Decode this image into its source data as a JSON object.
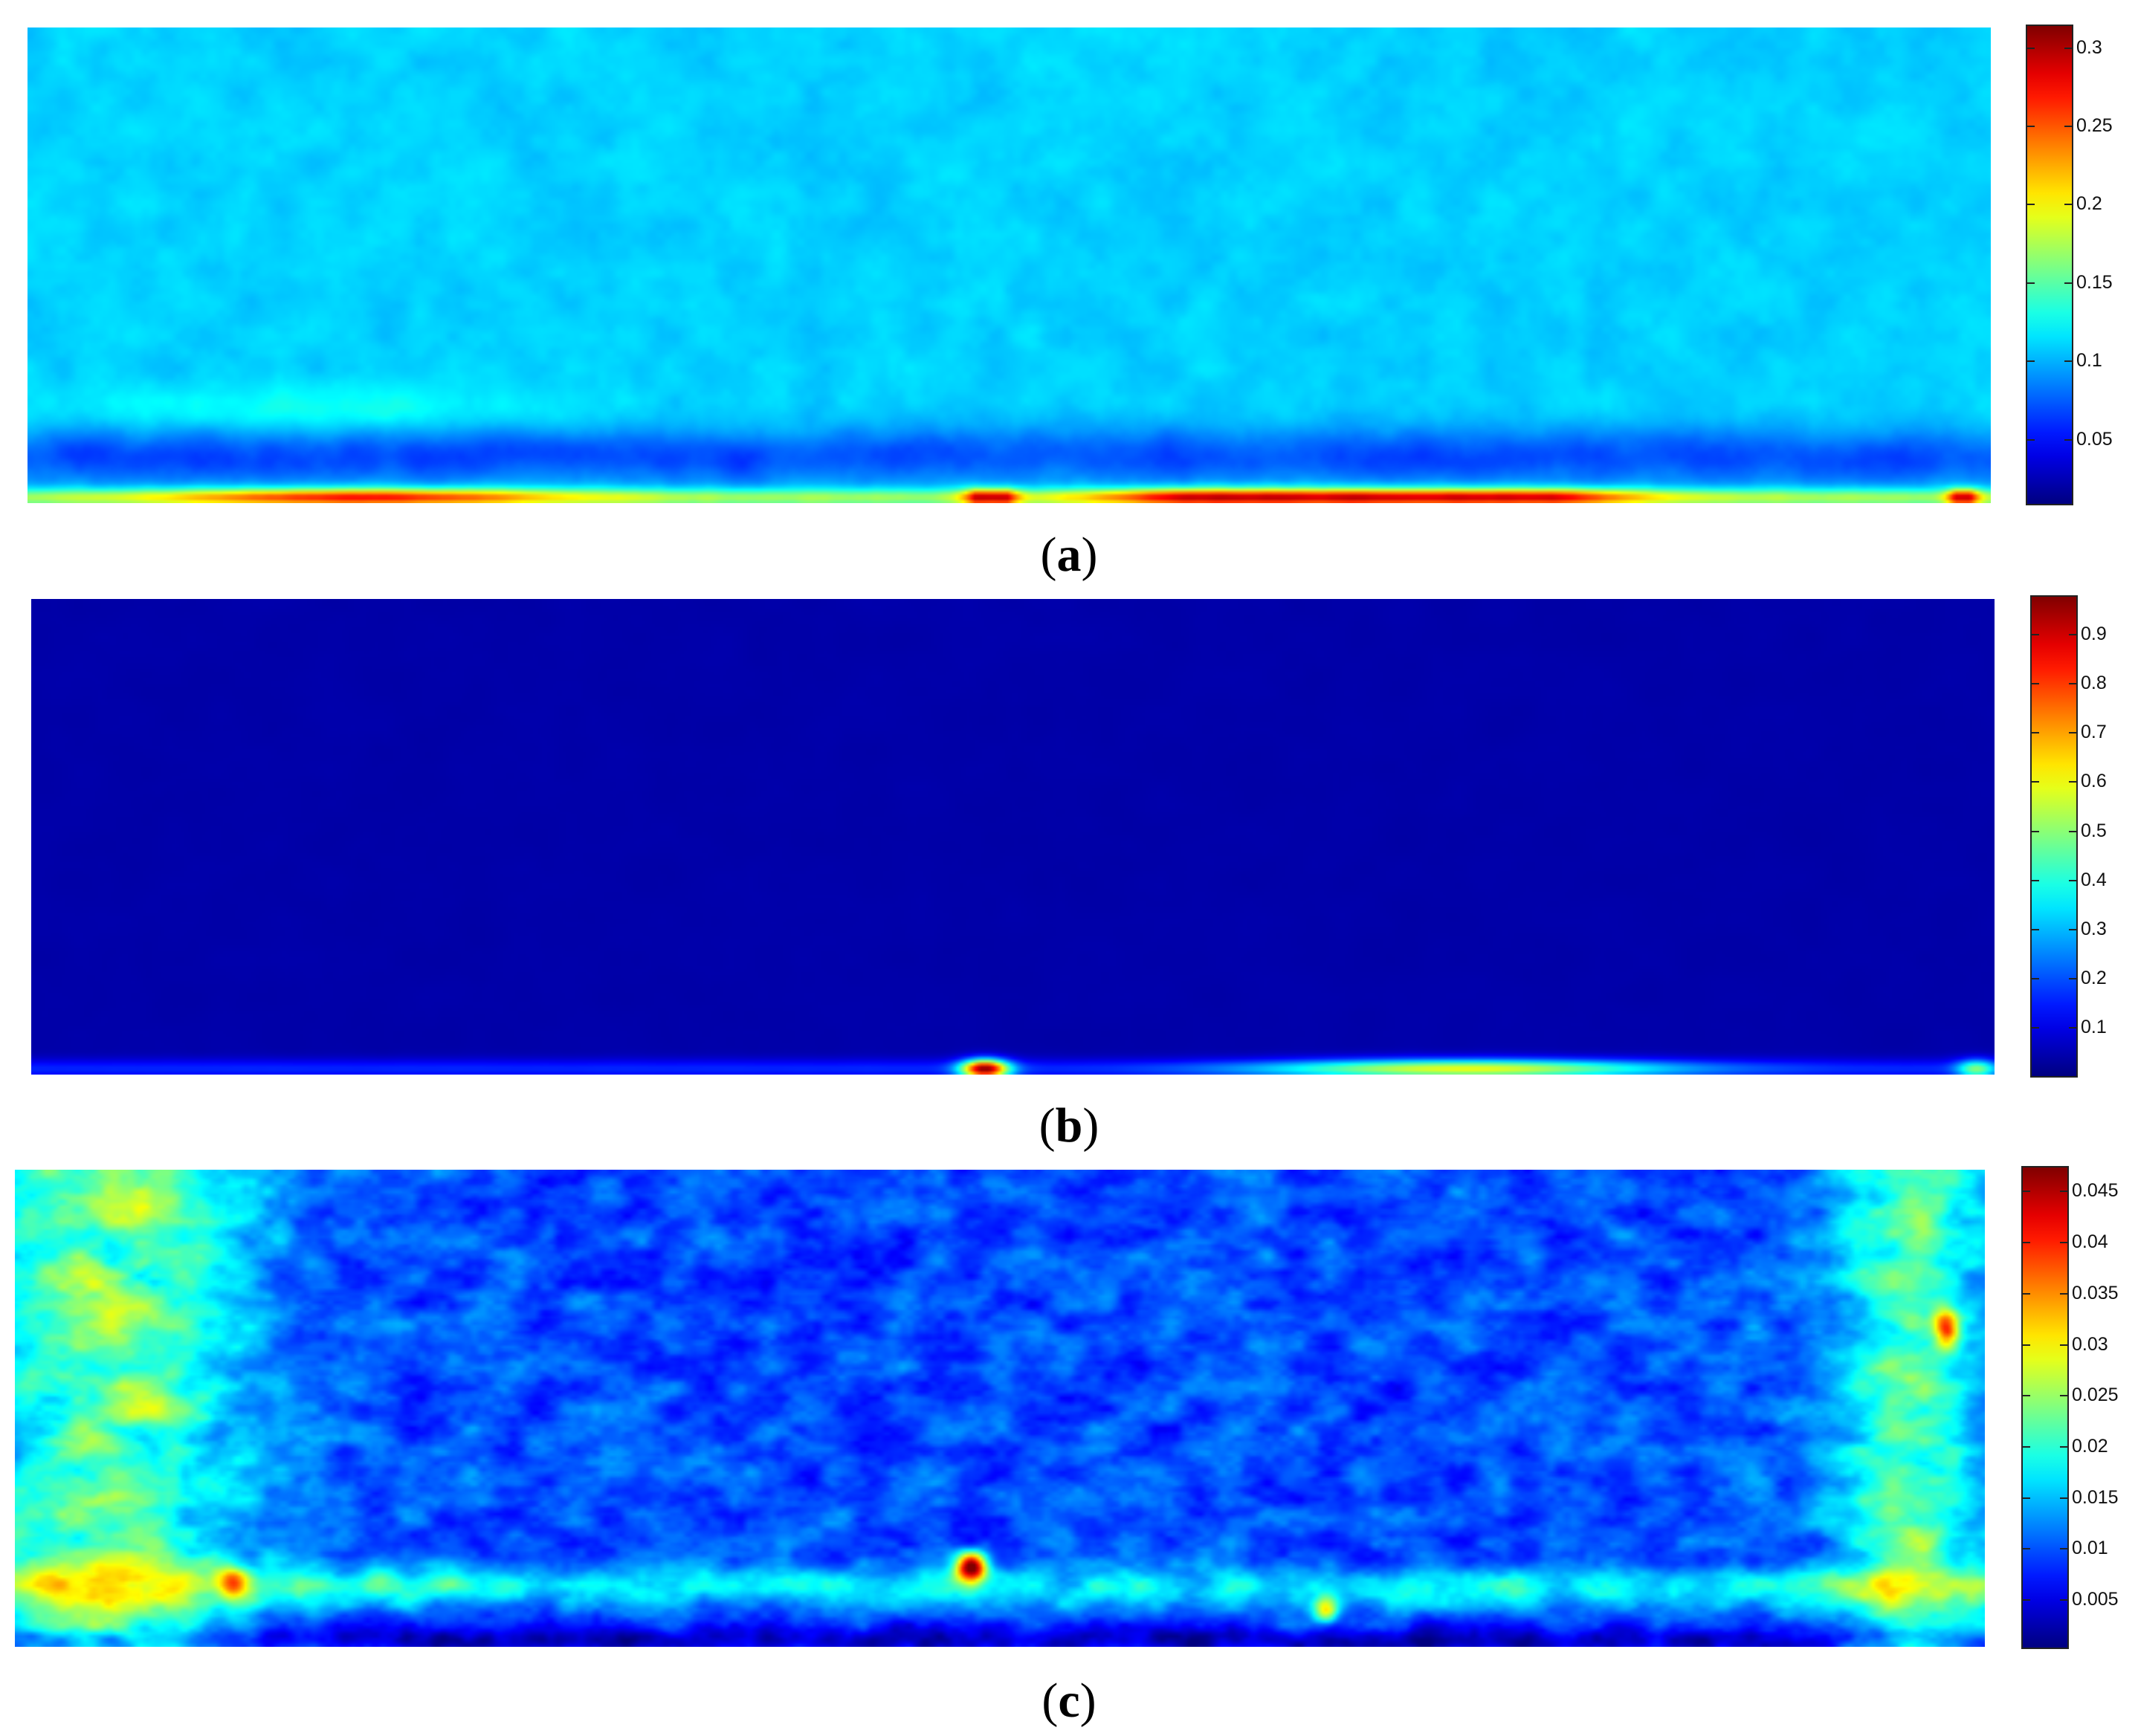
{
  "chart_data": [
    {
      "type": "heatmap",
      "panel_label": "a",
      "colormap": "jet",
      "colorbar": {
        "ticks": [
          0.05,
          0.1,
          0.15,
          0.2,
          0.25,
          0.3
        ],
        "tick_labels": [
          "0.05",
          "0.1",
          "0.15",
          "0.2",
          "0.25",
          "0.3"
        ],
        "range": [
          0.01,
          0.315
        ]
      }
    },
    {
      "type": "heatmap",
      "panel_label": "b",
      "colormap": "jet",
      "colorbar": {
        "ticks": [
          0.1,
          0.2,
          0.3,
          0.4,
          0.5,
          0.6,
          0.7,
          0.8,
          0.9
        ],
        "tick_labels": [
          "0.1",
          "0.2",
          "0.3",
          "0.4",
          "0.5",
          "0.6",
          "0.7",
          "0.8",
          "0.9"
        ],
        "range": [
          0.005,
          0.98
        ]
      }
    },
    {
      "type": "heatmap",
      "panel_label": "c",
      "colormap": "jet",
      "colorbar": {
        "ticks": [
          0.005,
          0.01,
          0.015,
          0.02,
          0.025,
          0.03,
          0.035,
          0.04,
          0.045
        ],
        "tick_labels": [
          "0.005",
          "0.01",
          "0.015",
          "0.02",
          "0.025",
          "0.03",
          "0.035",
          "0.04",
          "0.045"
        ],
        "range": [
          0.0005,
          0.0475
        ]
      }
    }
  ],
  "captions": [
    {
      "open": "(",
      "letter": "a",
      "close": ")"
    },
    {
      "open": "(",
      "letter": "b",
      "close": ")"
    },
    {
      "open": "(",
      "letter": "c",
      "close": ")"
    }
  ]
}
